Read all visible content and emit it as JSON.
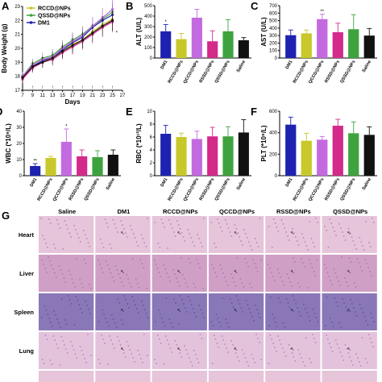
{
  "colors": {
    "DM1": "#1e22b0",
    "RCCD@NPs": "#c8c82a",
    "QCCD@NPs": "#c36ae0",
    "RSSD@NPs": "#d42a8a",
    "QSSD@NPs": "#3ea33e",
    "Saline": "#111111"
  },
  "chart_data": [
    {
      "panel": "A",
      "type": "line",
      "xlabel": "Days",
      "ylabel": "Body Weight (g)",
      "xlim": [
        7,
        27
      ],
      "ylim": [
        17,
        23
      ],
      "xticks": [
        7,
        9,
        11,
        13,
        15,
        17,
        19,
        21,
        23,
        25,
        27
      ],
      "yticks": [
        17,
        18,
        19,
        20,
        21,
        22,
        23
      ],
      "legend_position": "top-left",
      "legend": [
        "RCCD@NPs",
        "QSSD@NPs",
        "DM1"
      ],
      "x": [
        7,
        9,
        11,
        13,
        15,
        17,
        19,
        21,
        23,
        25
      ],
      "series": [
        {
          "name": "RCCD@NPs",
          "color": "#c8c82a",
          "values": [
            17.9,
            18.8,
            19.1,
            19.3,
            19.8,
            20.3,
            20.6,
            21.2,
            21.7,
            22.1
          ]
        },
        {
          "name": "QSSD@NPs",
          "color": "#3ea33e",
          "values": [
            18.0,
            18.9,
            19.3,
            19.5,
            20.1,
            20.6,
            21.0,
            21.6,
            22.1,
            22.6
          ]
        },
        {
          "name": "DM1",
          "color": "#1e22b0",
          "values": [
            17.9,
            18.7,
            19.1,
            19.4,
            19.9,
            20.4,
            20.8,
            21.5,
            22.0,
            22.4
          ]
        },
        {
          "name": "",
          "color": "#c36ae0",
          "values": [
            18.0,
            18.8,
            19.2,
            19.4,
            20.0,
            20.5,
            20.9,
            21.6,
            22.2,
            22.8
          ]
        },
        {
          "name": "",
          "color": "#d42a8a",
          "values": [
            17.8,
            18.6,
            19.0,
            19.2,
            19.7,
            20.1,
            20.5,
            21.0,
            21.5,
            21.9
          ]
        },
        {
          "name": "",
          "color": "#111111",
          "values": [
            17.9,
            18.7,
            19.0,
            19.3,
            19.8,
            20.2,
            20.6,
            21.1,
            21.6,
            22.0
          ]
        }
      ],
      "annotations": [
        "*"
      ]
    },
    {
      "panel": "B",
      "type": "bar",
      "ylabel": "ALT (U/L)",
      "ylim": [
        0,
        500
      ],
      "yticks": [
        0,
        100,
        200,
        300,
        400,
        500
      ],
      "categories": [
        "DM1",
        "RCCD@NPs",
        "QCCD@NPs",
        "RSSD@NPs",
        "QSSD@NPs",
        "Saline"
      ],
      "values": [
        255,
        180,
        385,
        160,
        255,
        170
      ],
      "errors": [
        65,
        55,
        80,
        100,
        110,
        25
      ],
      "sig": [
        "*",
        "",
        "",
        "",
        "",
        ""
      ]
    },
    {
      "panel": "C",
      "type": "bar",
      "ylabel": "AST (U/L)",
      "ylim": [
        0,
        700
      ],
      "yticks": [
        0,
        100,
        200,
        300,
        400,
        500,
        600,
        700
      ],
      "categories": [
        "DM1",
        "RCCD@NPs",
        "QCCD@NPs",
        "RSSD@NPs",
        "QSSD@NPs",
        "Saline"
      ],
      "values": [
        305,
        330,
        520,
        345,
        385,
        300
      ],
      "errors": [
        70,
        45,
        65,
        120,
        195,
        95
      ],
      "sig": [
        "",
        "",
        "**",
        "",
        "",
        ""
      ]
    },
    {
      "panel": "D",
      "type": "bar",
      "ylabel": "WBC (*10⁹/L)",
      "ylim": [
        0,
        40
      ],
      "yticks": [
        0,
        10,
        20,
        30,
        40
      ],
      "categories": [
        "DM1",
        "RCCD@NPs",
        "QCCD@NPs",
        "RSSD@NPs",
        "QSSD@NPs",
        "Saline"
      ],
      "values": [
        6,
        11,
        21,
        12,
        11.5,
        13
      ],
      "errors": [
        1.5,
        1,
        8,
        4,
        4,
        3
      ],
      "sig": [
        "**",
        "",
        "*",
        "",
        "",
        ""
      ]
    },
    {
      "panel": "E",
      "type": "bar",
      "ylabel": "RBC (*10¹²/L)",
      "ylim": [
        0,
        10
      ],
      "yticks": [
        0,
        2,
        4,
        6,
        8,
        10
      ],
      "categories": [
        "DM1",
        "RCCD@NPs",
        "QCCD@NPs",
        "RSSD@NPs",
        "QSSD@NPs",
        "Saline"
      ],
      "values": [
        6.5,
        6.0,
        5.7,
        6.1,
        6.1,
        6.7
      ],
      "errors": [
        1.3,
        0.6,
        1.2,
        1.4,
        1.5,
        2.0
      ],
      "sig": [
        "",
        "",
        "",
        "",
        "",
        ""
      ]
    },
    {
      "panel": "F",
      "type": "bar",
      "ylabel": "PLT (*10⁹/L)",
      "ylim": [
        0,
        600
      ],
      "yticks": [
        0,
        200,
        400,
        600
      ],
      "categories": [
        "DM1",
        "RCCD@NPs",
        "QCCD@NPs",
        "RSSD@NPs",
        "QSSD@NPs",
        "Saline"
      ],
      "values": [
        475,
        325,
        335,
        465,
        395,
        380
      ],
      "errors": [
        70,
        70,
        30,
        60,
        105,
        75
      ],
      "sig": [
        "",
        "",
        "",
        "",
        "",
        ""
      ]
    }
  ],
  "panelG": {
    "label": "G",
    "columns": [
      "Saline",
      "DM1",
      "RCCD@NPs",
      "QCCD@NPs",
      "RSSD@NPs",
      "QSSD@NPs"
    ],
    "rows": [
      {
        "name": "Heart",
        "color": "#e6c4da"
      },
      {
        "name": "Liver",
        "color": "#cf9fc6"
      },
      {
        "name": "Spleen",
        "color": "#8a77b8"
      },
      {
        "name": "Lung",
        "color": "#e3c3dc"
      }
    ]
  }
}
